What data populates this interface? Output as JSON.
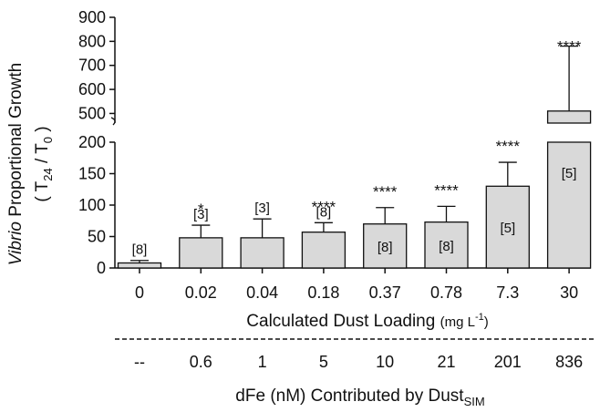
{
  "chart_data": {
    "type": "bar",
    "categories": [
      "0",
      "0.02",
      "0.04",
      "0.18",
      "0.37",
      "0.78",
      "7.3",
      "30"
    ],
    "values": [
      8,
      48,
      48,
      57,
      70,
      73,
      130,
      510
    ],
    "error_upper": [
      12,
      68,
      78,
      72,
      96,
      98,
      168,
      780
    ],
    "n_labels": [
      "[8]",
      "[3]",
      "[3]",
      "[8]",
      "[8]",
      "[8]",
      "[5]",
      "[5]"
    ],
    "significance": [
      "",
      "*",
      "",
      "****",
      "****",
      "****",
      "****",
      "****"
    ],
    "dfe_values": [
      "--",
      "0.6",
      "1",
      "5",
      "10",
      "21",
      "201",
      "836"
    ],
    "ylabel": {
      "italic": "Vibrio",
      "rest": " Proportional Growth",
      "line2_open": "( T",
      "line2_sub1": "24",
      "line2_mid": " / T",
      "line2_sub2": "0",
      "line2_close": " )"
    },
    "xlabel": {
      "main": "Calculated  Dust Loading ",
      "unit": "(mg L",
      "unit_sup": "-1",
      "unit_close": ")"
    },
    "xlabel2": {
      "main": "dFe (nM)  Contributed by Dust",
      "sub": "SIM"
    },
    "yaxis_lower": {
      "range": [
        0,
        200
      ],
      "ticks": [
        0,
        50,
        100,
        150,
        200
      ]
    },
    "yaxis_upper": {
      "range": [
        460,
        900
      ],
      "ticks": [
        500,
        600,
        700,
        800,
        900
      ]
    },
    "broken_axis": true,
    "bar_color": "#d9d9d9"
  }
}
